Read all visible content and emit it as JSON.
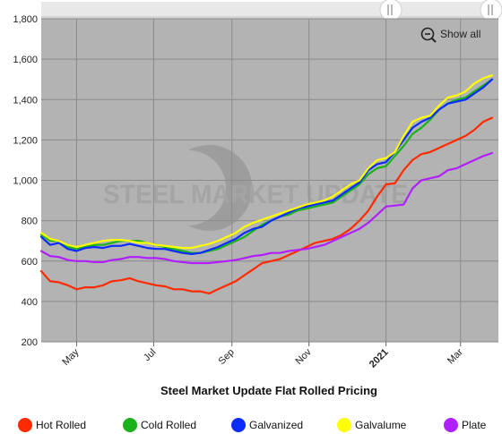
{
  "chart_data": {
    "type": "line",
    "title": "Steel Market Update Flat Rolled Pricing",
    "watermark": "STEEL MARKET UPDATE",
    "show_all_label": "Show all",
    "y_ticks": [
      200,
      400,
      600,
      800,
      1000,
      1200,
      1400,
      1600,
      1800
    ],
    "y_tick_labels": [
      "200",
      "400",
      "600",
      "800",
      "1,000",
      "1,200",
      "1,400",
      "1,600",
      "1,800"
    ],
    "ylim": [
      200,
      1800
    ],
    "xlim": [
      "2020-04-03",
      "2021-03-31"
    ],
    "x_ticks": [
      {
        "date": "2020-05-01",
        "label": "May",
        "bold": false
      },
      {
        "date": "2020-07-01",
        "label": "Jul",
        "bold": false
      },
      {
        "date": "2020-09-01",
        "label": "Sep",
        "bold": false
      },
      {
        "date": "2020-11-01",
        "label": "Nov",
        "bold": false
      },
      {
        "date": "2021-01-01",
        "label": "2021",
        "bold": true
      },
      {
        "date": "2021-03-01",
        "label": "Mar",
        "bold": false
      }
    ],
    "plot_background": "#b3b3b3",
    "grid_color": "#8a8a8a",
    "x": [
      "2020-04-03",
      "2020-04-10",
      "2020-04-17",
      "2020-04-24",
      "2020-05-01",
      "2020-05-08",
      "2020-05-15",
      "2020-05-22",
      "2020-05-29",
      "2020-06-05",
      "2020-06-12",
      "2020-06-19",
      "2020-06-26",
      "2020-07-03",
      "2020-07-10",
      "2020-07-17",
      "2020-07-24",
      "2020-07-31",
      "2020-08-07",
      "2020-08-14",
      "2020-08-21",
      "2020-08-28",
      "2020-09-04",
      "2020-09-11",
      "2020-09-18",
      "2020-09-25",
      "2020-10-02",
      "2020-10-09",
      "2020-10-16",
      "2020-10-23",
      "2020-10-30",
      "2020-11-06",
      "2020-11-13",
      "2020-11-20",
      "2020-11-27",
      "2020-12-04",
      "2020-12-11",
      "2020-12-18",
      "2020-12-25",
      "2021-01-01",
      "2021-01-08",
      "2021-01-15",
      "2021-01-22",
      "2021-01-29",
      "2021-02-05",
      "2021-02-12",
      "2021-02-19",
      "2021-02-26",
      "2021-03-05",
      "2021-03-12",
      "2021-03-19",
      "2021-03-26"
    ],
    "series": [
      {
        "name": "Hot Rolled",
        "color": "#ff2a00",
        "values": [
          550,
          500,
          495,
          480,
          460,
          470,
          470,
          480,
          500,
          505,
          515,
          500,
          490,
          480,
          475,
          460,
          460,
          450,
          450,
          440,
          460,
          480,
          500,
          530,
          560,
          590,
          600,
          610,
          630,
          650,
          670,
          690,
          700,
          710,
          730,
          760,
          800,
          850,
          920,
          980,
          985,
          1050,
          1100,
          1130,
          1140,
          1160,
          1180,
          1200,
          1220,
          1250,
          1290,
          1310
        ]
      },
      {
        "name": "Cold Rolled",
        "color": "#1ab21a",
        "values": [
          730,
          700,
          700,
          670,
          660,
          670,
          680,
          680,
          690,
          700,
          700,
          700,
          690,
          680,
          670,
          660,
          650,
          640,
          640,
          650,
          660,
          680,
          700,
          720,
          750,
          780,
          800,
          820,
          830,
          850,
          860,
          870,
          880,
          890,
          920,
          950,
          980,
          1030,
          1060,
          1070,
          1120,
          1170,
          1230,
          1260,
          1300,
          1350,
          1380,
          1400,
          1410,
          1440,
          1470,
          1500
        ]
      },
      {
        "name": "Galvanized",
        "color": "#0b2bff",
        "values": [
          720,
          680,
          690,
          660,
          650,
          665,
          670,
          665,
          675,
          675,
          685,
          675,
          665,
          660,
          660,
          650,
          640,
          635,
          640,
          655,
          670,
          690,
          710,
          740,
          760,
          770,
          800,
          820,
          840,
          860,
          870,
          880,
          890,
          900,
          930,
          960,
          990,
          1050,
          1080,
          1090,
          1140,
          1200,
          1260,
          1290,
          1310,
          1350,
          1380,
          1390,
          1400,
          1430,
          1460,
          1500
        ]
      },
      {
        "name": "Galvalume",
        "color": "#ffff00",
        "values": [
          740,
          710,
          700,
          680,
          670,
          680,
          690,
          700,
          705,
          705,
          700,
          690,
          690,
          680,
          675,
          670,
          665,
          665,
          675,
          685,
          700,
          720,
          740,
          770,
          790,
          805,
          820,
          835,
          850,
          865,
          880,
          890,
          900,
          920,
          950,
          980,
          1000,
          1060,
          1100,
          1110,
          1140,
          1220,
          1290,
          1310,
          1320,
          1370,
          1410,
          1420,
          1440,
          1480,
          1505,
          1520
        ]
      },
      {
        "name": "Plate",
        "color": "#b020ff",
        "values": [
          650,
          625,
          620,
          605,
          600,
          600,
          595,
          595,
          605,
          610,
          620,
          620,
          615,
          615,
          610,
          600,
          595,
          590,
          590,
          590,
          595,
          600,
          605,
          615,
          625,
          630,
          640,
          640,
          650,
          655,
          660,
          670,
          680,
          700,
          720,
          740,
          760,
          790,
          830,
          870,
          875,
          880,
          960,
          1000,
          1010,
          1020,
          1050,
          1060,
          1080,
          1100,
          1120,
          1135
        ]
      }
    ]
  }
}
